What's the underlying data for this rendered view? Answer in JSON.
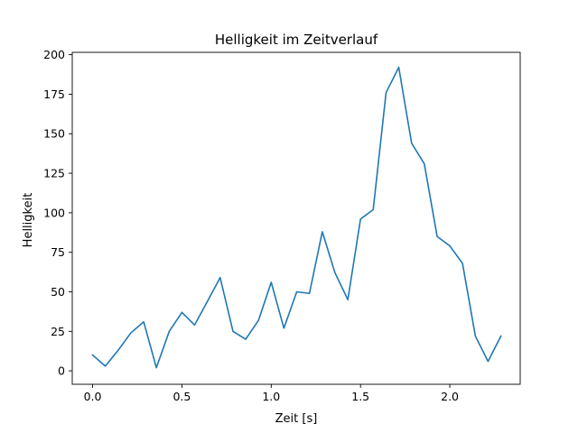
{
  "chart_data": {
    "type": "line",
    "title": "Helligkeit im Zeitverlauf",
    "xlabel": "Zeit [s]",
    "ylabel": "Helligkeit",
    "xlim": [
      -0.114,
      2.394
    ],
    "ylim": [
      -8.5,
      201.5
    ],
    "x_ticks": [
      0.0,
      0.5,
      1.0,
      1.5,
      2.0
    ],
    "x_tick_labels": [
      "0.0",
      "0.5",
      "1.0",
      "1.5",
      "2.0"
    ],
    "y_ticks": [
      0,
      25,
      50,
      75,
      100,
      125,
      150,
      175,
      200
    ],
    "y_tick_labels": [
      "0",
      "25",
      "50",
      "75",
      "100",
      "125",
      "150",
      "175",
      "200"
    ],
    "grid": false,
    "series": [
      {
        "color": "#1f77b4",
        "x": [
          0.0,
          0.071,
          0.143,
          0.214,
          0.286,
          0.357,
          0.429,
          0.5,
          0.571,
          0.643,
          0.714,
          0.786,
          0.857,
          0.929,
          1.0,
          1.071,
          1.143,
          1.214,
          1.286,
          1.357,
          1.429,
          1.5,
          1.571,
          1.643,
          1.714,
          1.786,
          1.857,
          1.929,
          2.0,
          2.071,
          2.143,
          2.214,
          2.286
        ],
        "y": [
          10,
          3,
          13,
          24,
          31,
          2,
          25,
          37,
          29,
          44,
          59,
          25,
          20,
          32,
          56,
          27,
          50,
          49,
          88,
          62,
          45,
          96,
          102,
          176,
          192,
          144,
          131,
          85,
          79,
          68,
          22,
          6,
          22
        ]
      }
    ]
  }
}
